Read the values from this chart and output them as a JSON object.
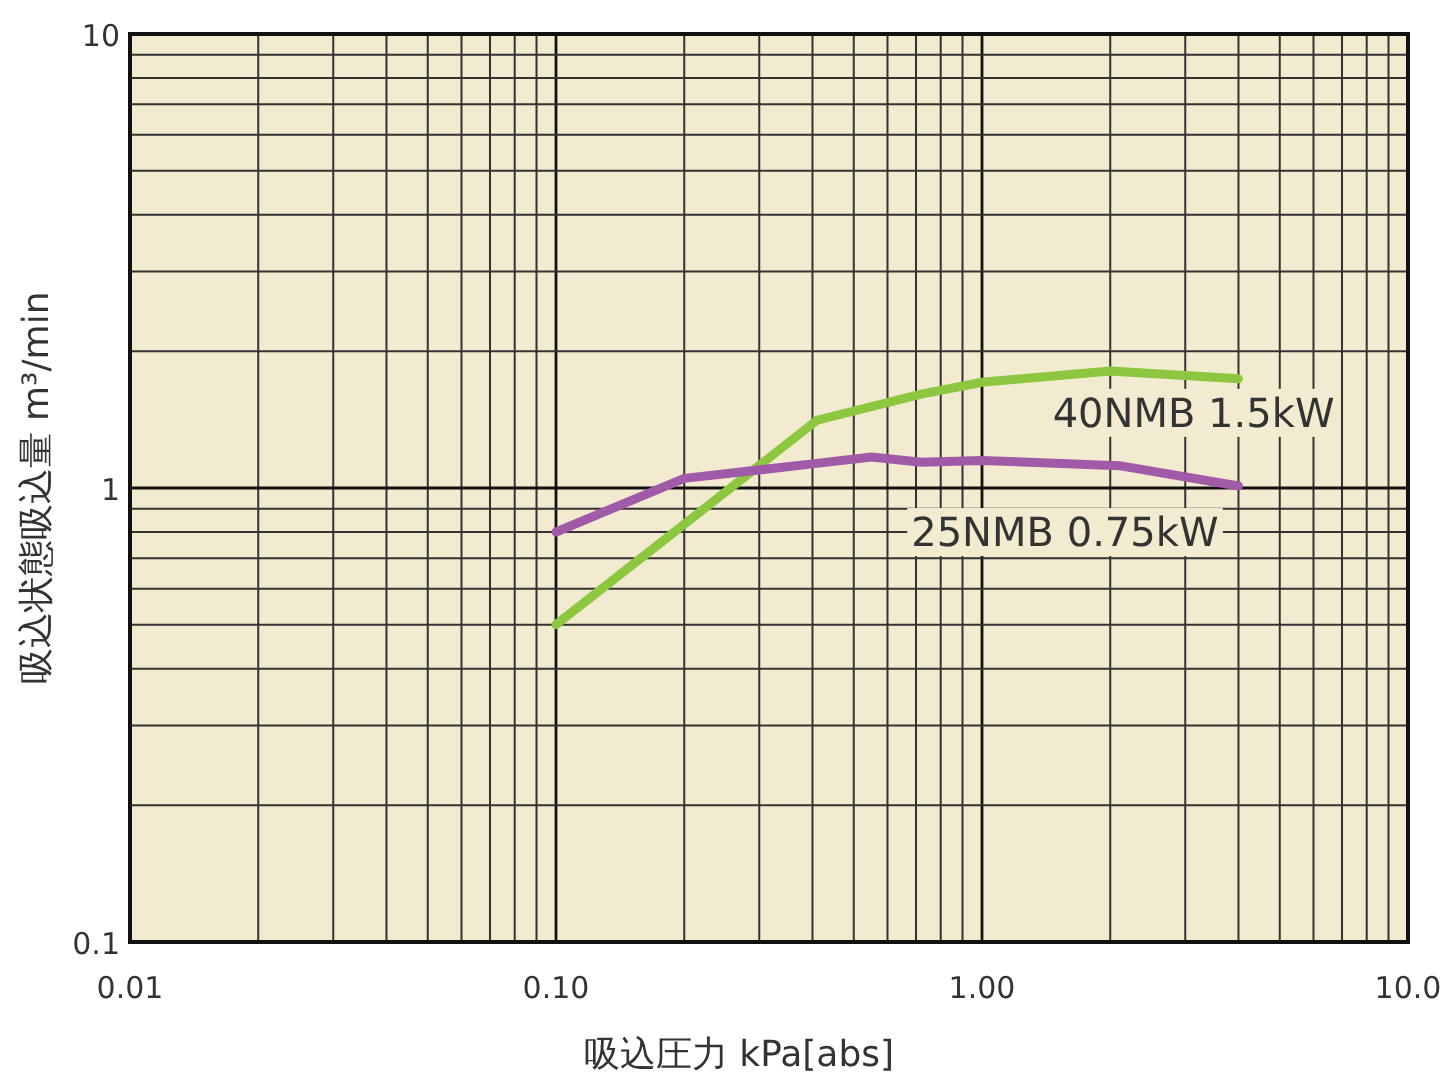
{
  "chart_data": {
    "type": "line",
    "xlabel": "吸込圧力 kPa[abs]",
    "ylabel": "吸込状態吸込量 m³/min",
    "log": "xy",
    "grid": true,
    "line_style": "solid",
    "xlim": [
      0.01,
      10
    ],
    "xticks": [
      {
        "value": 0.01,
        "label": "0.01"
      },
      {
        "value": 0.1,
        "label": "0.10"
      },
      {
        "value": 1,
        "label": "1.00"
      },
      {
        "value": 10,
        "label": "10.0"
      }
    ],
    "ylim": [
      0.1,
      10
    ],
    "yticks": [
      0.1,
      1,
      10
    ],
    "series": [
      {
        "name": "40NMB 1.5kW",
        "color": "#8dc63f",
        "x": [
          0.1,
          0.41,
          0.72,
          1.0,
          2.0,
          4.0
        ],
        "values": [
          0.5,
          1.41,
          1.61,
          1.71,
          1.81,
          1.74
        ]
      },
      {
        "name": "25NMB 0.75kW",
        "color": "#a05aa8",
        "x": [
          0.1,
          0.2,
          0.4,
          0.55,
          0.72,
          1.0,
          2.1,
          4.0
        ],
        "values": [
          0.8,
          1.05,
          1.13,
          1.17,
          1.14,
          1.15,
          1.12,
          1.01
        ]
      }
    ]
  }
}
